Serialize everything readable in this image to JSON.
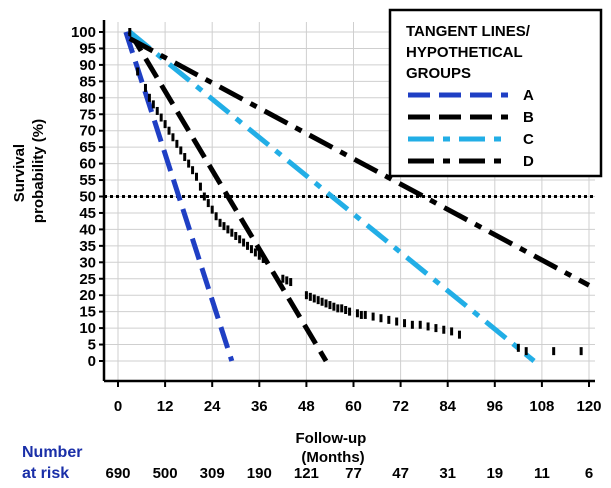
{
  "chart_data": {
    "type": "line",
    "ylabel": [
      "Survival",
      "probability (%)"
    ],
    "xlabel": [
      "Follow-up",
      "(Months)"
    ],
    "xlim": [
      0,
      120
    ],
    "ylim": [
      0,
      100
    ],
    "x_ticks": [
      0,
      12,
      24,
      36,
      48,
      60,
      72,
      84,
      96,
      108,
      120
    ],
    "y_ticks": [
      0,
      5,
      10,
      15,
      20,
      25,
      30,
      35,
      40,
      45,
      50,
      55,
      60,
      65,
      70,
      75,
      80,
      85,
      90,
      95,
      100
    ],
    "reference_line": {
      "y": 50,
      "style": "dotted"
    },
    "legend": {
      "title": [
        "TANGENT LINES/",
        "HYPOTHETICAL",
        "GROUPS"
      ],
      "position": "top-right"
    },
    "km_curve": {
      "color": "#000000",
      "x": [
        3,
        5,
        7,
        8,
        9,
        10,
        11,
        12,
        13,
        14,
        15,
        16,
        17,
        18,
        19,
        20,
        21,
        22,
        23,
        24,
        25,
        26,
        27,
        28,
        29,
        30,
        31,
        32,
        33,
        34,
        35,
        36,
        37,
        42,
        43,
        44,
        48,
        49,
        50,
        51,
        52,
        53,
        54,
        55,
        56,
        57,
        58,
        59,
        61,
        62,
        63,
        65,
        67,
        69,
        71,
        73,
        75,
        77,
        79,
        81,
        83,
        85,
        87,
        102,
        104,
        111,
        118
      ],
      "y": [
        100,
        88,
        83,
        80,
        78,
        76,
        74,
        72,
        70,
        68,
        66,
        64,
        62,
        60,
        58,
        56,
        53,
        50,
        48,
        46,
        44,
        42,
        41,
        40,
        39,
        38,
        37,
        36,
        35,
        34,
        33,
        32,
        31,
        25,
        24.5,
        24,
        20,
        19.5,
        19,
        18.5,
        18,
        17.5,
        17,
        16.5,
        16,
        16,
        15.5,
        15,
        14.5,
        14,
        14,
        13.5,
        13,
        12.5,
        12,
        11.5,
        11,
        11,
        10.5,
        10,
        9.5,
        9,
        8,
        4,
        3,
        3,
        3
      ]
    },
    "series": [
      {
        "name": "A",
        "color": "#1f3fc4",
        "dash": "dashed",
        "x": [
          2,
          29
        ],
        "y": [
          100,
          0
        ]
      },
      {
        "name": "B",
        "color": "#000000",
        "dash": "dashed",
        "x": [
          3,
          53
        ],
        "y": [
          100,
          0
        ]
      },
      {
        "name": "C",
        "color": "#22aee6",
        "dash": "dashdot",
        "x": [
          3,
          106
        ],
        "y": [
          100,
          0
        ]
      },
      {
        "name": "D",
        "color": "#000000",
        "dash": "dashdot",
        "x": [
          3,
          120
        ],
        "y": [
          98,
          23
        ]
      }
    ],
    "number_at_risk": {
      "label": [
        "Number",
        "at risk"
      ],
      "values": [
        "690",
        "500",
        "309",
        "190",
        "121",
        "77",
        "47",
        "31",
        "19",
        "11",
        "6"
      ]
    }
  }
}
